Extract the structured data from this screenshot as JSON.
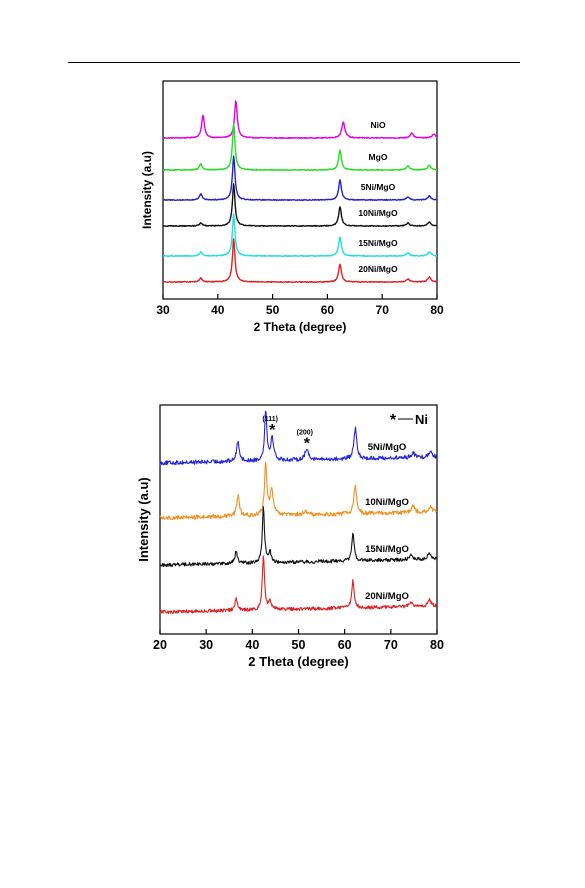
{
  "chart_data": [
    {
      "type": "line",
      "xlabel": "2 Theta (degree)",
      "ylabel": "Intensity (a.u)",
      "xlim": [
        30,
        80
      ],
      "xticks": [
        30,
        40,
        50,
        60,
        70,
        80
      ],
      "grid": false,
      "series": [
        {
          "name": "NiO",
          "color": "#e000e0",
          "baseline": 6,
          "noise": 0.04,
          "peaks": [
            [
              37.3,
              2.3,
              0.3
            ],
            [
              43.3,
              3.7,
              0.3
            ],
            [
              62.9,
              1.6,
              0.35
            ],
            [
              75.4,
              0.5,
              0.35
            ],
            [
              79.4,
              0.4,
              0.35
            ]
          ]
        },
        {
          "name": "MgO",
          "color": "#22dd22",
          "baseline": 5,
          "noise": 0.04,
          "peaks": [
            [
              36.9,
              0.6,
              0.3
            ],
            [
              42.9,
              4.6,
              0.28
            ],
            [
              62.3,
              2.0,
              0.3
            ],
            [
              74.7,
              0.4,
              0.35
            ],
            [
              78.6,
              0.5,
              0.35
            ]
          ]
        },
        {
          "name": "5Ni/MgO",
          "color": "#2222cc",
          "baseline": 4,
          "noise": 0.04,
          "peaks": [
            [
              36.9,
              0.6,
              0.3
            ],
            [
              42.9,
              4.4,
              0.28
            ],
            [
              62.3,
              2.0,
              0.3
            ],
            [
              74.7,
              0.3,
              0.35
            ],
            [
              78.6,
              0.4,
              0.35
            ]
          ]
        },
        {
          "name": "10Ni/MgO",
          "color": "#111111",
          "baseline": 3,
          "noise": 0.04,
          "peaks": [
            [
              36.9,
              0.3,
              0.3
            ],
            [
              42.9,
              4.2,
              0.28
            ],
            [
              62.3,
              1.9,
              0.3
            ],
            [
              74.7,
              0.3,
              0.35
            ],
            [
              78.6,
              0.4,
              0.35
            ]
          ]
        },
        {
          "name": "15Ni/MgO",
          "color": "#22dddd",
          "baseline": 2,
          "noise": 0.04,
          "peaks": [
            [
              36.9,
              0.4,
              0.3
            ],
            [
              42.9,
              4.2,
              0.28
            ],
            [
              62.3,
              1.9,
              0.3
            ],
            [
              74.7,
              0.3,
              0.35
            ],
            [
              78.6,
              0.4,
              0.35
            ]
          ]
        },
        {
          "name": "20Ni/MgO",
          "color": "#e02020",
          "baseline": 1,
          "noise": 0.04,
          "peaks": [
            [
              36.9,
              0.4,
              0.3
            ],
            [
              42.9,
              4.3,
              0.28
            ],
            [
              62.3,
              1.8,
              0.3
            ],
            [
              74.7,
              0.3,
              0.35
            ],
            [
              78.6,
              0.5,
              0.35
            ]
          ]
        }
      ]
    },
    {
      "type": "line",
      "xlabel": "2 Theta (degree)",
      "ylabel": "Intensity (a.u)",
      "xlim": [
        20,
        80
      ],
      "xticks": [
        20,
        30,
        40,
        50,
        60,
        70,
        80
      ],
      "grid": false,
      "legend": {
        "text": "Ni",
        "placement": "top-right"
      },
      "annotations": [
        {
          "label": "(111)",
          "x": 44.3
        },
        {
          "label": "(200)",
          "x": 51.8
        }
      ],
      "series": [
        {
          "name": "5Ni/MgO",
          "color": "#2222dd",
          "baseline": 4,
          "noise": 0.12,
          "peaks": [
            [
              36.9,
              1.2,
              0.35
            ],
            [
              42.9,
              3.0,
              0.28
            ],
            [
              44.3,
              1.3,
              0.4
            ],
            [
              51.8,
              0.6,
              0.5
            ],
            [
              62.3,
              1.8,
              0.35
            ],
            [
              74.8,
              0.3,
              0.4
            ],
            [
              78.6,
              0.4,
              0.4
            ]
          ]
        },
        {
          "name": "10Ni/MgO",
          "color": "#f09020",
          "baseline": 3,
          "noise": 0.12,
          "peaks": [
            [
              36.9,
              1.2,
              0.35
            ],
            [
              42.9,
              3.0,
              0.3
            ],
            [
              44.2,
              1.4,
              0.45
            ],
            [
              51.5,
              0.2,
              0.5
            ],
            [
              62.3,
              1.7,
              0.35
            ],
            [
              74.8,
              0.4,
              0.4
            ],
            [
              78.6,
              0.3,
              0.4
            ]
          ]
        },
        {
          "name": "15Ni/MgO",
          "color": "#111111",
          "baseline": 2,
          "noise": 0.1,
          "peaks": [
            [
              36.5,
              0.7,
              0.3
            ],
            [
              42.4,
              3.2,
              0.28
            ],
            [
              43.8,
              0.6,
              0.35
            ],
            [
              61.8,
              1.6,
              0.3
            ],
            [
              74.3,
              0.3,
              0.4
            ],
            [
              78.4,
              0.4,
              0.4
            ]
          ]
        },
        {
          "name": "20Ni/MgO",
          "color": "#e02020",
          "baseline": 1,
          "noise": 0.1,
          "peaks": [
            [
              36.5,
              0.7,
              0.3
            ],
            [
              42.4,
              3.2,
              0.28
            ],
            [
              43.8,
              0.5,
              0.35
            ],
            [
              61.8,
              1.6,
              0.3
            ],
            [
              74.3,
              0.3,
              0.4
            ],
            [
              78.4,
              0.4,
              0.4
            ]
          ]
        }
      ]
    }
  ]
}
